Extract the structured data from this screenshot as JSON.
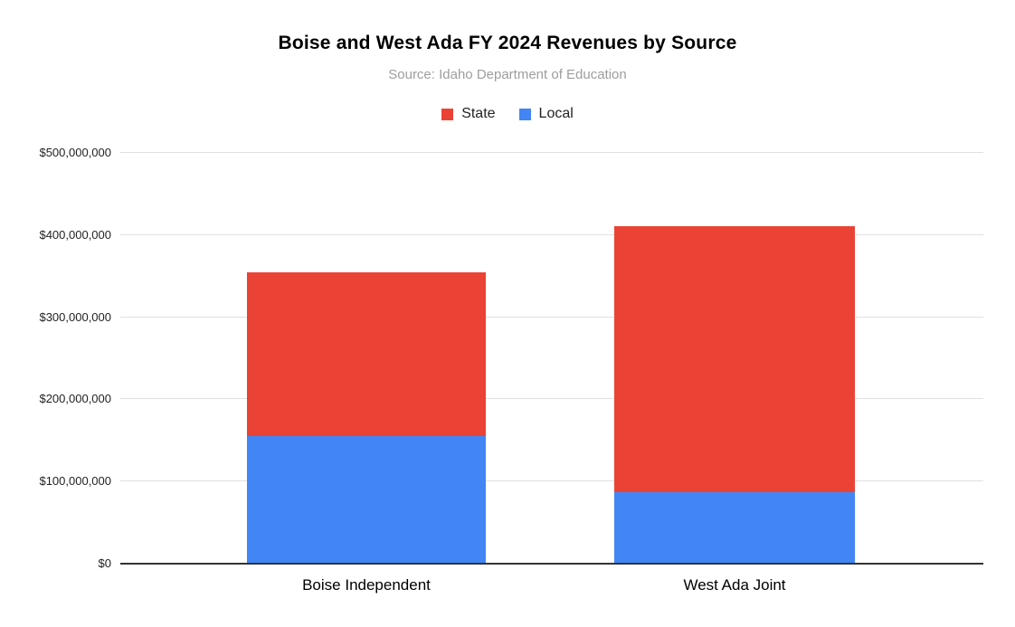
{
  "title": "Boise and West Ada FY 2024 Revenues by Source",
  "subtitle": "Source: Idaho Department of Education",
  "legend": {
    "position": "top",
    "items": [
      {
        "label": "State",
        "color": "#EA4335"
      },
      {
        "label": "Local",
        "color": "#4285F4"
      }
    ]
  },
  "chart_data": {
    "type": "bar",
    "stacked": true,
    "title": "Boise and West Ada FY 2024 Revenues by Source",
    "subtitle": "Source: Idaho Department of Education",
    "categories": [
      "Boise Independent",
      "West Ada Joint"
    ],
    "series": [
      {
        "name": "State",
        "color": "#EA4335",
        "values": [
          199000000,
          324000000
        ]
      },
      {
        "name": "Local",
        "color": "#4285F4",
        "values": [
          154000000,
          86000000
        ]
      }
    ],
    "totals": [
      353000000,
      410000000
    ],
    "xlabel": "",
    "ylabel": "",
    "ylim": [
      0,
      500000000
    ],
    "ytick_interval": 100000000,
    "ytick_labels": [
      "$0",
      "$100,000,000",
      "$200,000,000",
      "$300,000,000",
      "$400,000,000",
      "$500,000,000"
    ],
    "grid": true,
    "legend_position": "top",
    "grid_color": "#e0e0e0",
    "axis_color": "#333333"
  }
}
